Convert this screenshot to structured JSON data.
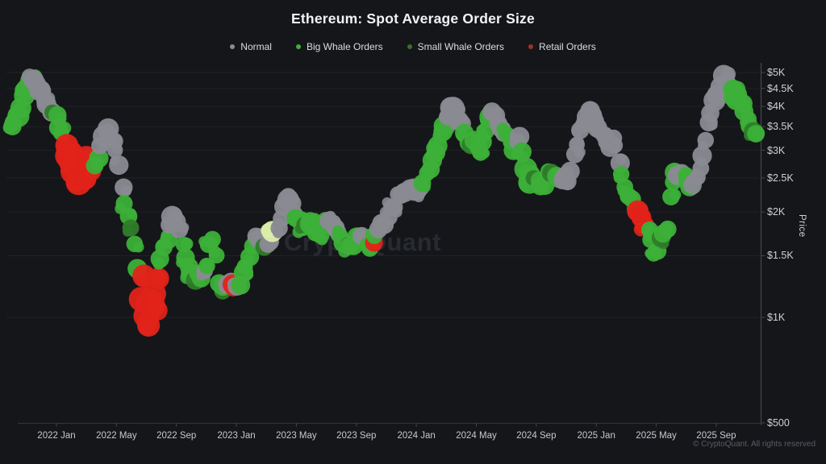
{
  "header": {
    "title": "Ethereum: Spot Average Order Size"
  },
  "legend": [
    {
      "label": "Normal",
      "key": "n",
      "color": "#8b8b92"
    },
    {
      "label": "Big Whale Orders",
      "key": "b",
      "color": "#3fae3a"
    },
    {
      "label": "Small Whale Orders",
      "key": "s",
      "color": "#3c6e2d"
    },
    {
      "label": "Retail Orders",
      "key": "r",
      "color": "#a03129"
    }
  ],
  "watermark": {
    "text": "CryptoQuant"
  },
  "footer": {
    "text": "© CryptoQuant. All rights reserved"
  },
  "chart_data": {
    "type": "scatter",
    "title": "Ethereum: Spot Average Order Size",
    "xlabel": "",
    "ylabel": "Price",
    "y_scale": "log",
    "grid": true,
    "legend_position": "top",
    "x_range": [
      "2021-10",
      "2025-11"
    ],
    "y_range": [
      500,
      5270
    ],
    "y_ticks": [
      {
        "label": "$5K",
        "value": 5000
      },
      {
        "label": "$4.5K",
        "value": 4500
      },
      {
        "label": "$4K",
        "value": 4000
      },
      {
        "label": "$3.5K",
        "value": 3500
      },
      {
        "label": "$3K",
        "value": 3000
      },
      {
        "label": "$2.5K",
        "value": 2500
      },
      {
        "label": "$2K",
        "value": 2000
      },
      {
        "label": "$1.5K",
        "value": 1500
      },
      {
        "label": "$1K",
        "value": 1000
      },
      {
        "label": "$500",
        "value": 500
      }
    ],
    "x_ticks": [
      {
        "label": "2022 Jan",
        "t": 3
      },
      {
        "label": "2022 May",
        "t": 7
      },
      {
        "label": "2022 Sep",
        "t": 11
      },
      {
        "label": "2023 Jan",
        "t": 15
      },
      {
        "label": "2023 May",
        "t": 19
      },
      {
        "label": "2023 Sep",
        "t": 23
      },
      {
        "label": "2024 Jan",
        "t": 27
      },
      {
        "label": "2024 May",
        "t": 31
      },
      {
        "label": "2024 Sep",
        "t": 35
      },
      {
        "label": "2025 Jan",
        "t": 39
      },
      {
        "label": "2025 May",
        "t": 43
      },
      {
        "label": "2025 Sep",
        "t": 47
      }
    ],
    "series_colors": {
      "n": "#8a8a92",
      "b": "#3cb038",
      "s": "#2f7c2a",
      "r": "#e2231a",
      "h": "#dcedaa"
    },
    "category_names": {
      "n": "Normal",
      "b": "Big Whale Orders",
      "s": "Small Whale Orders",
      "r": "Retail Orders",
      "h": "Highlighted"
    },
    "t_unit": "months since 2021-10-01",
    "points": [
      [
        0.0,
        3450,
        "b"
      ],
      [
        0.2,
        3600,
        "b"
      ],
      [
        0.4,
        3800,
        "b",
        13
      ],
      [
        0.6,
        4000,
        "b",
        13
      ],
      [
        0.8,
        4300,
        "b",
        14
      ],
      [
        1.0,
        4550,
        "b",
        14
      ],
      [
        1.2,
        4750,
        "b",
        13
      ],
      [
        1.4,
        4800,
        "n",
        13
      ],
      [
        1.6,
        4650,
        "n",
        12
      ],
      [
        1.8,
        4500,
        "n",
        13
      ],
      [
        2.0,
        4350,
        "n"
      ],
      [
        2.2,
        4200,
        "n"
      ],
      [
        2.4,
        4050,
        "n"
      ],
      [
        2.6,
        3900,
        "n"
      ],
      [
        2.8,
        3800,
        "s"
      ],
      [
        3.0,
        3700,
        "b"
      ],
      [
        3.2,
        3500,
        "b"
      ],
      [
        3.4,
        3300,
        "b"
      ],
      [
        3.6,
        3100,
        "r",
        14
      ],
      [
        3.8,
        2950,
        "r",
        15
      ],
      [
        4.0,
        2800,
        "r",
        16
      ],
      [
        4.1,
        3000,
        "r",
        13
      ],
      [
        4.2,
        2600,
        "r",
        16
      ],
      [
        4.4,
        2450,
        "r",
        15
      ],
      [
        4.6,
        2500,
        "r",
        16
      ],
      [
        4.8,
        2700,
        "r",
        15
      ],
      [
        4.9,
        2450,
        "r",
        13
      ],
      [
        5.0,
        2900,
        "r",
        14
      ],
      [
        5.2,
        2750,
        "r",
        14
      ],
      [
        5.4,
        2600,
        "r",
        13
      ],
      [
        5.6,
        2700,
        "b"
      ],
      [
        5.8,
        2900,
        "b"
      ],
      [
        6.0,
        3100,
        "n"
      ],
      [
        6.2,
        3300,
        "n",
        13
      ],
      [
        6.4,
        3450,
        "n",
        13
      ],
      [
        6.6,
        3350,
        "n"
      ],
      [
        6.8,
        3150,
        "n"
      ],
      [
        7.0,
        2950,
        "n"
      ],
      [
        7.2,
        2700,
        "n"
      ],
      [
        7.4,
        2350,
        "n"
      ],
      [
        7.6,
        2100,
        "b"
      ],
      [
        7.8,
        1950,
        "b"
      ],
      [
        8.0,
        1800,
        "s"
      ],
      [
        8.2,
        1650,
        "b"
      ],
      [
        8.4,
        1350,
        "b"
      ],
      [
        8.6,
        1150,
        "r",
        15
      ],
      [
        8.8,
        1300,
        "r",
        13
      ],
      [
        9.0,
        1000,
        "r",
        16
      ],
      [
        9.2,
        930,
        "r",
        15
      ],
      [
        9.4,
        1080,
        "r",
        16
      ],
      [
        9.6,
        1180,
        "r",
        14
      ],
      [
        9.8,
        1280,
        "r",
        13
      ],
      [
        10.0,
        1450,
        "b"
      ],
      [
        10.2,
        1600,
        "b"
      ],
      [
        10.4,
        1700,
        "b"
      ],
      [
        10.6,
        1800,
        "n"
      ],
      [
        10.8,
        1950,
        "n",
        13
      ],
      [
        11.0,
        1900,
        "n"
      ],
      [
        11.2,
        1750,
        "n"
      ],
      [
        11.4,
        1600,
        "b"
      ],
      [
        11.6,
        1500,
        "b"
      ],
      [
        11.8,
        1400,
        "b"
      ],
      [
        12.0,
        1320,
        "b"
      ],
      [
        12.2,
        1280,
        "s"
      ],
      [
        12.4,
        1330,
        "b"
      ],
      [
        12.6,
        1290,
        "b"
      ],
      [
        12.8,
        1330,
        "n"
      ],
      [
        13.0,
        1420,
        "b"
      ],
      [
        13.2,
        1600,
        "b"
      ],
      [
        13.4,
        1650,
        "b"
      ],
      [
        13.6,
        1480,
        "b"
      ],
      [
        13.8,
        1260,
        "b"
      ],
      [
        14.0,
        1180,
        "s"
      ],
      [
        14.2,
        1220,
        "b"
      ],
      [
        14.4,
        1260,
        "n"
      ],
      [
        14.6,
        1240,
        "n"
      ],
      [
        14.8,
        1220,
        "r",
        13
      ],
      [
        15.0,
        1210,
        "n"
      ],
      [
        15.2,
        1260,
        "b"
      ],
      [
        15.4,
        1330,
        "b"
      ],
      [
        15.6,
        1420,
        "b"
      ],
      [
        15.8,
        1500,
        "b"
      ],
      [
        16.0,
        1580,
        "b"
      ],
      [
        16.2,
        1650,
        "b"
      ],
      [
        16.4,
        1680,
        "n"
      ],
      [
        16.6,
        1640,
        "n"
      ],
      [
        16.8,
        1600,
        "s"
      ],
      [
        17.0,
        1630,
        "n"
      ],
      [
        17.2,
        1680,
        "n"
      ],
      [
        17.5,
        1750,
        "h",
        13
      ],
      [
        17.8,
        1800,
        "n"
      ],
      [
        18.0,
        1900,
        "n"
      ],
      [
        18.2,
        2050,
        "n"
      ],
      [
        18.4,
        2150,
        "n",
        13
      ],
      [
        18.6,
        2080,
        "n"
      ],
      [
        18.8,
        1980,
        "n"
      ],
      [
        19.0,
        1900,
        "b"
      ],
      [
        19.2,
        1850,
        "b"
      ],
      [
        19.4,
        1800,
        "b"
      ],
      [
        19.6,
        1820,
        "s"
      ],
      [
        19.8,
        1880,
        "b"
      ],
      [
        20.0,
        1850,
        "b"
      ],
      [
        20.2,
        1780,
        "b"
      ],
      [
        20.4,
        1720,
        "b"
      ],
      [
        20.6,
        1760,
        "b"
      ],
      [
        20.8,
        1850,
        "b"
      ],
      [
        21.0,
        1900,
        "b"
      ],
      [
        21.2,
        1880,
        "n"
      ],
      [
        21.4,
        1840,
        "n"
      ],
      [
        21.6,
        1780,
        "n"
      ],
      [
        21.8,
        1720,
        "n"
      ],
      [
        22.0,
        1680,
        "b"
      ],
      [
        22.2,
        1650,
        "b"
      ],
      [
        22.4,
        1620,
        "s"
      ],
      [
        22.6,
        1600,
        "b"
      ],
      [
        22.8,
        1630,
        "b"
      ],
      [
        23.0,
        1670,
        "b"
      ],
      [
        23.2,
        1700,
        "b"
      ],
      [
        23.4,
        1720,
        "n"
      ],
      [
        23.6,
        1670,
        "n"
      ],
      [
        23.8,
        1620,
        "b"
      ],
      [
        24.0,
        1590,
        "b"
      ],
      [
        24.1,
        1640,
        "r",
        10
      ],
      [
        24.3,
        1700,
        "b"
      ],
      [
        24.5,
        1760,
        "n"
      ],
      [
        24.7,
        1820,
        "n"
      ],
      [
        24.9,
        1870,
        "n"
      ],
      [
        25.1,
        1950,
        "n"
      ],
      [
        25.3,
        2050,
        "n"
      ],
      [
        25.5,
        2100,
        "n"
      ],
      [
        25.7,
        2200,
        "n"
      ],
      [
        25.9,
        2300,
        "n"
      ],
      [
        26.1,
        2250,
        "n"
      ],
      [
        26.3,
        2320,
        "n"
      ],
      [
        26.5,
        2380,
        "n"
      ],
      [
        26.7,
        2320,
        "n"
      ],
      [
        26.9,
        2260,
        "n"
      ],
      [
        27.1,
        2320,
        "n"
      ],
      [
        27.3,
        2380,
        "n"
      ],
      [
        27.5,
        2450,
        "b"
      ],
      [
        27.7,
        2550,
        "b"
      ],
      [
        27.9,
        2650,
        "b"
      ],
      [
        28.1,
        2800,
        "b"
      ],
      [
        28.3,
        2950,
        "b"
      ],
      [
        28.5,
        3150,
        "b",
        13
      ],
      [
        28.7,
        3350,
        "b",
        13
      ],
      [
        28.9,
        3550,
        "b",
        13
      ],
      [
        29.1,
        3700,
        "n"
      ],
      [
        29.3,
        3900,
        "n",
        13
      ],
      [
        29.5,
        4000,
        "n",
        13
      ],
      [
        29.7,
        3850,
        "n"
      ],
      [
        29.9,
        3650,
        "n"
      ],
      [
        30.1,
        3500,
        "n"
      ],
      [
        30.3,
        3300,
        "b"
      ],
      [
        30.5,
        3100,
        "b"
      ],
      [
        30.7,
        3150,
        "s"
      ],
      [
        30.9,
        3200,
        "b"
      ],
      [
        31.1,
        3100,
        "b"
      ],
      [
        31.3,
        3000,
        "b"
      ],
      [
        31.5,
        3150,
        "b"
      ],
      [
        31.7,
        3400,
        "b"
      ],
      [
        31.9,
        3700,
        "b",
        13
      ],
      [
        32.1,
        3800,
        "n"
      ],
      [
        32.3,
        3750,
        "n"
      ],
      [
        32.5,
        3600,
        "n"
      ],
      [
        32.7,
        3500,
        "n"
      ],
      [
        32.9,
        3400,
        "n"
      ],
      [
        33.1,
        3350,
        "b"
      ],
      [
        33.3,
        3150,
        "b"
      ],
      [
        33.5,
        3000,
        "b"
      ],
      [
        33.7,
        3200,
        "n"
      ],
      [
        33.9,
        3300,
        "n"
      ],
      [
        34.1,
        3000,
        "b"
      ],
      [
        34.3,
        2650,
        "b",
        13
      ],
      [
        34.5,
        2450,
        "b",
        13
      ],
      [
        34.7,
        2600,
        "b"
      ],
      [
        34.9,
        2550,
        "s"
      ],
      [
        35.1,
        2450,
        "b"
      ],
      [
        35.3,
        2350,
        "b"
      ],
      [
        35.5,
        2420,
        "b"
      ],
      [
        35.7,
        2550,
        "b"
      ],
      [
        35.9,
        2650,
        "b"
      ],
      [
        36.1,
        2600,
        "s"
      ],
      [
        36.3,
        2500,
        "b"
      ],
      [
        36.5,
        2450,
        "b"
      ],
      [
        36.7,
        2500,
        "n"
      ],
      [
        36.9,
        2560,
        "n"
      ],
      [
        37.1,
        2470,
        "n"
      ],
      [
        37.3,
        2620,
        "n"
      ],
      [
        37.5,
        2900,
        "n"
      ],
      [
        37.7,
        3150,
        "n"
      ],
      [
        37.9,
        3350,
        "n"
      ],
      [
        38.1,
        3550,
        "n"
      ],
      [
        38.3,
        3750,
        "n",
        13
      ],
      [
        38.5,
        3950,
        "n",
        13
      ],
      [
        38.7,
        3850,
        "n"
      ],
      [
        38.9,
        3650,
        "n"
      ],
      [
        39.1,
        3480,
        "n"
      ],
      [
        39.3,
        3350,
        "n"
      ],
      [
        39.5,
        3300,
        "n"
      ],
      [
        39.7,
        3220,
        "n"
      ],
      [
        39.9,
        3120,
        "n"
      ],
      [
        40.1,
        3250,
        "n"
      ],
      [
        40.3,
        3050,
        "n"
      ],
      [
        40.5,
        2800,
        "n"
      ],
      [
        40.7,
        2600,
        "b"
      ],
      [
        40.9,
        2400,
        "b"
      ],
      [
        41.1,
        2250,
        "b"
      ],
      [
        41.3,
        2150,
        "b"
      ],
      [
        41.5,
        2050,
        "b"
      ],
      [
        41.7,
        2000,
        "r",
        13
      ],
      [
        41.9,
        1950,
        "r",
        13
      ],
      [
        42.1,
        1900,
        "r",
        12
      ],
      [
        42.3,
        1850,
        "r",
        12
      ],
      [
        42.5,
        1750,
        "b"
      ],
      [
        42.7,
        1650,
        "b"
      ],
      [
        42.9,
        1520,
        "b"
      ],
      [
        43.1,
        1580,
        "b"
      ],
      [
        43.3,
        1650,
        "s"
      ],
      [
        43.5,
        1720,
        "b"
      ],
      [
        43.7,
        1820,
        "b"
      ],
      [
        43.9,
        2200,
        "b"
      ],
      [
        44.1,
        2450,
        "b"
      ],
      [
        44.3,
        2550,
        "b"
      ],
      [
        44.5,
        2500,
        "n"
      ],
      [
        44.7,
        2600,
        "n"
      ],
      [
        44.9,
        2520,
        "b"
      ],
      [
        45.1,
        2450,
        "b"
      ],
      [
        45.3,
        2350,
        "b"
      ],
      [
        45.5,
        2420,
        "n"
      ],
      [
        45.7,
        2500,
        "n"
      ],
      [
        45.9,
        2700,
        "n"
      ],
      [
        46.1,
        2950,
        "n"
      ],
      [
        46.3,
        3250,
        "n"
      ],
      [
        46.5,
        3550,
        "n"
      ],
      [
        46.7,
        3800,
        "n"
      ],
      [
        46.9,
        4100,
        "n",
        13
      ],
      [
        47.1,
        4350,
        "n",
        13
      ],
      [
        47.3,
        4600,
        "n",
        13
      ],
      [
        47.5,
        4800,
        "n",
        13
      ],
      [
        47.7,
        4700,
        "n"
      ],
      [
        47.9,
        4500,
        "n"
      ],
      [
        48.1,
        4400,
        "b",
        13
      ],
      [
        48.3,
        4250,
        "b",
        13
      ],
      [
        48.5,
        4350,
        "b"
      ],
      [
        48.7,
        4150,
        "b"
      ],
      [
        48.9,
        3950,
        "b"
      ],
      [
        49.1,
        3750,
        "b"
      ],
      [
        49.3,
        3550,
        "b"
      ],
      [
        49.4,
        3400,
        "s"
      ],
      [
        49.6,
        3300,
        "b"
      ]
    ]
  }
}
